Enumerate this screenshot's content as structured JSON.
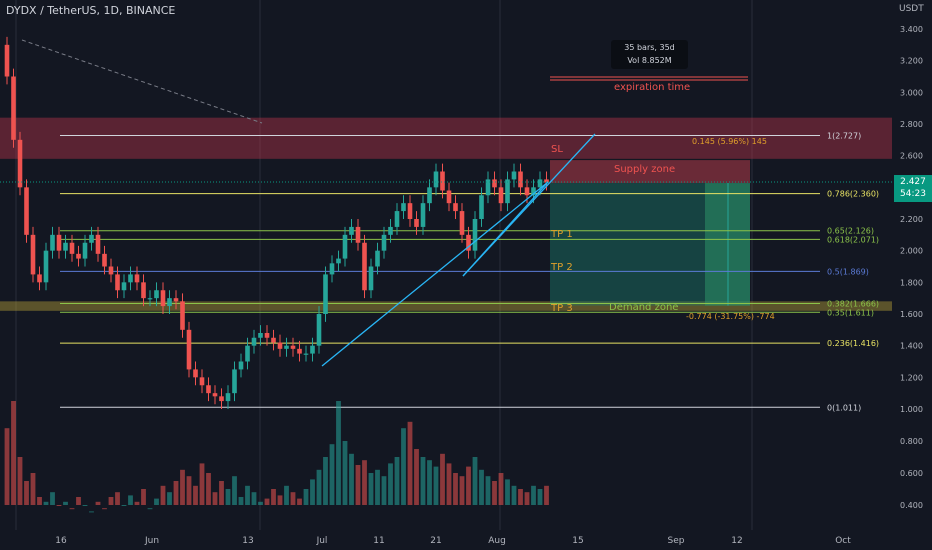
{
  "header": {
    "title": "DYDX / TetherUS, 1D, BINANCE",
    "currency": "USDT"
  },
  "price_tag": {
    "price": "2.427",
    "countdown": "54:23"
  },
  "measure_box": {
    "bars": "35 bars, 35d",
    "volume": "Vol 8.852M"
  },
  "annotations": {
    "expiration": "expiration time",
    "sl": "SL",
    "supply_zone": "Supply zone",
    "demand_zone": "Demand zone",
    "tp1": "TP 1",
    "tp2": "TP 2",
    "tp3": "TP 3",
    "target_gain": "0.145 (5.96%) 145",
    "stop_loss": "-0.774 (-31.75%) -774"
  },
  "colors": {
    "background": "#131722",
    "up": "#26a69a",
    "down": "#ef5350",
    "supply": "#b2334a",
    "demand": "#c8b03a",
    "pattern": "#29b6f6",
    "label_orange": "#e0a02a"
  },
  "chart_data": {
    "type": "candlestick",
    "x_axis": {
      "ticks": [
        "16",
        "Jun",
        "13",
        "Jul",
        "11",
        "21",
        "Aug",
        "15",
        "Sep",
        "12",
        "Oct"
      ]
    },
    "y_axis": {
      "range": [
        0.3,
        3.55
      ],
      "ticks": [
        "3.400",
        "3.200",
        "3.000",
        "2.800",
        "2.600",
        "2.400",
        "2.200",
        "2.000",
        "1.800",
        "1.600",
        "1.400",
        "1.200",
        "1.000",
        "0.800",
        "0.600",
        "0.400"
      ]
    },
    "fib_levels": [
      {
        "ratio": "1",
        "price": 2.727,
        "label": "1(2.727)",
        "color": "#d1d4dc"
      },
      {
        "ratio": "0.786",
        "price": 2.36,
        "label": "0.786(2.360)",
        "color": "#e8e364"
      },
      {
        "ratio": "0.65",
        "price": 2.126,
        "label": "0.65(2.126)",
        "color": "#8bc34a"
      },
      {
        "ratio": "0.618",
        "price": 2.071,
        "label": "0.618(2.071)",
        "color": "#8bc34a"
      },
      {
        "ratio": "0.5",
        "price": 1.869,
        "label": "0.5(1.869)",
        "color": "#5b7bd6"
      },
      {
        "ratio": "0.382",
        "price": 1.666,
        "label": "0.382(1.666)",
        "color": "#8bc34a"
      },
      {
        "ratio": "0.35",
        "price": 1.611,
        "label": "0.35(1.611)",
        "color": "#8bc34a"
      },
      {
        "ratio": "0.236",
        "price": 1.416,
        "label": "0.236(1.416)",
        "color": "#e8e364"
      },
      {
        "ratio": "0",
        "price": 1.011,
        "label": "0(1.011)",
        "color": "#d1d4dc"
      }
    ],
    "zones": {
      "supply": [
        2.58,
        2.84
      ],
      "demand": [
        1.62,
        1.68
      ],
      "target": [
        2.427,
        2.572
      ],
      "stop": [
        1.653,
        2.427
      ]
    },
    "candles": {
      "open": [
        3.3,
        3.1,
        2.7,
        2.4,
        2.1,
        1.85,
        1.8,
        2.0,
        2.1,
        2.0,
        2.05,
        1.98,
        1.95,
        2.05,
        2.1,
        1.98,
        1.9,
        1.85,
        1.75,
        1.8,
        1.85,
        1.8,
        1.7,
        1.7,
        1.75,
        1.65,
        1.7,
        1.68,
        1.5,
        1.25,
        1.2,
        1.15,
        1.1,
        1.08,
        1.05,
        1.1,
        1.25,
        1.3,
        1.4,
        1.45,
        1.48,
        1.45,
        1.42,
        1.38,
        1.4,
        1.38,
        1.35,
        1.35,
        1.4,
        1.6,
        1.85,
        1.92,
        1.95,
        2.1,
        2.15,
        2.05,
        1.75,
        1.9,
        2.0,
        2.1,
        2.15,
        2.25,
        2.3,
        2.2,
        2.15,
        2.3,
        2.4,
        2.5,
        2.38,
        2.3,
        2.25,
        2.1,
        2.0,
        2.2,
        2.35,
        2.45,
        2.4,
        2.3,
        2.45,
        2.5,
        2.4,
        2.35,
        2.4,
        2.45
      ],
      "close": [
        3.1,
        2.7,
        2.4,
        2.1,
        1.85,
        1.8,
        2.0,
        2.1,
        2.0,
        2.05,
        1.98,
        1.95,
        2.05,
        2.1,
        1.98,
        1.9,
        1.85,
        1.75,
        1.8,
        1.85,
        1.8,
        1.7,
        1.7,
        1.75,
        1.65,
        1.7,
        1.68,
        1.5,
        1.25,
        1.2,
        1.15,
        1.1,
        1.08,
        1.05,
        1.1,
        1.25,
        1.3,
        1.4,
        1.45,
        1.48,
        1.45,
        1.42,
        1.38,
        1.4,
        1.38,
        1.35,
        1.35,
        1.4,
        1.6,
        1.85,
        1.92,
        1.95,
        2.1,
        2.15,
        2.05,
        1.75,
        1.9,
        2.0,
        2.1,
        2.15,
        2.25,
        2.3,
        2.2,
        2.15,
        2.3,
        2.4,
        2.5,
        2.38,
        2.3,
        2.25,
        2.1,
        2.0,
        2.2,
        2.35,
        2.45,
        2.4,
        2.3,
        2.45,
        2.5,
        2.4,
        2.35,
        2.4,
        2.45,
        2.43
      ]
    },
    "volume": [
      0.88,
      1.05,
      0.7,
      0.55,
      0.6,
      0.45,
      0.42,
      0.48,
      0.4,
      0.42,
      0.38,
      0.45,
      0.4,
      0.36,
      0.42,
      0.38,
      0.45,
      0.48,
      0.4,
      0.46,
      0.42,
      0.5,
      0.38,
      0.44,
      0.52,
      0.48,
      0.55,
      0.62,
      0.58,
      0.52,
      0.66,
      0.6,
      0.48,
      0.55,
      0.5,
      0.58,
      0.45,
      0.52,
      0.48,
      0.42,
      0.44,
      0.5,
      0.46,
      0.52,
      0.48,
      0.44,
      0.5,
      0.56,
      0.62,
      0.7,
      0.78,
      1.05,
      0.8,
      0.72,
      0.65,
      0.68,
      0.6,
      0.62,
      0.58,
      0.66,
      0.7,
      0.88,
      0.92,
      0.75,
      0.7,
      0.68,
      0.64,
      0.72,
      0.66,
      0.6,
      0.58,
      0.64,
      0.7,
      0.62,
      0.58,
      0.55,
      0.6,
      0.56,
      0.52,
      0.5,
      0.48,
      0.52,
      0.5,
      0.52
    ],
    "volume_axis": {
      "range": [
        0.3,
        1.05
      ],
      "ticks": [
        "1.000",
        "0.800",
        "0.600",
        "0.400"
      ]
    }
  }
}
